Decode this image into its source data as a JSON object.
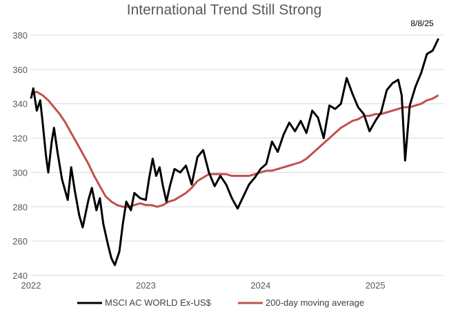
{
  "chart_data": {
    "type": "line",
    "title": "International Trend Still Strong",
    "date_label": "8/8/25",
    "ylim": [
      240,
      380
    ],
    "yticks": [
      240,
      260,
      280,
      300,
      320,
      340,
      360,
      380
    ],
    "xlim": [
      2022.0,
      2025.6
    ],
    "xticks": [
      {
        "label": "2022",
        "value": 2022.0
      },
      {
        "label": "2023",
        "value": 2023.0
      },
      {
        "label": "2024",
        "value": 2024.0
      },
      {
        "label": "2025",
        "value": 2025.0
      }
    ],
    "grid": true,
    "legend_position": "bottom",
    "series": [
      {
        "name": "MSCI AC WORLD Ex-US$",
        "color": "#000000",
        "points": [
          [
            2022.0,
            343
          ],
          [
            2022.02,
            349
          ],
          [
            2022.05,
            336
          ],
          [
            2022.08,
            342
          ],
          [
            2022.1,
            330
          ],
          [
            2022.13,
            310
          ],
          [
            2022.15,
            300
          ],
          [
            2022.18,
            318
          ],
          [
            2022.2,
            326
          ],
          [
            2022.23,
            312
          ],
          [
            2022.27,
            296
          ],
          [
            2022.32,
            284
          ],
          [
            2022.35,
            303
          ],
          [
            2022.38,
            290
          ],
          [
            2022.42,
            275
          ],
          [
            2022.45,
            268
          ],
          [
            2022.5,
            284
          ],
          [
            2022.53,
            291
          ],
          [
            2022.57,
            278
          ],
          [
            2022.6,
            285
          ],
          [
            2022.63,
            270
          ],
          [
            2022.67,
            258
          ],
          [
            2022.7,
            250
          ],
          [
            2022.73,
            246
          ],
          [
            2022.77,
            254
          ],
          [
            2022.8,
            270
          ],
          [
            2022.83,
            283
          ],
          [
            2022.87,
            278
          ],
          [
            2022.9,
            288
          ],
          [
            2022.95,
            285
          ],
          [
            2023.0,
            284
          ],
          [
            2023.03,
            297
          ],
          [
            2023.06,
            308
          ],
          [
            2023.09,
            298
          ],
          [
            2023.12,
            303
          ],
          [
            2023.15,
            292
          ],
          [
            2023.18,
            283
          ],
          [
            2023.21,
            292
          ],
          [
            2023.25,
            302
          ],
          [
            2023.3,
            300
          ],
          [
            2023.35,
            304
          ],
          [
            2023.4,
            293
          ],
          [
            2023.45,
            309
          ],
          [
            2023.5,
            313
          ],
          [
            2023.55,
            300
          ],
          [
            2023.6,
            292
          ],
          [
            2023.65,
            298
          ],
          [
            2023.7,
            293
          ],
          [
            2023.75,
            285
          ],
          [
            2023.8,
            279
          ],
          [
            2023.85,
            286
          ],
          [
            2023.9,
            293
          ],
          [
            2023.95,
            297
          ],
          [
            2024.0,
            302
          ],
          [
            2024.05,
            305
          ],
          [
            2024.1,
            318
          ],
          [
            2024.15,
            312
          ],
          [
            2024.2,
            322
          ],
          [
            2024.25,
            329
          ],
          [
            2024.3,
            324
          ],
          [
            2024.35,
            330
          ],
          [
            2024.4,
            323
          ],
          [
            2024.45,
            336
          ],
          [
            2024.5,
            332
          ],
          [
            2024.55,
            320
          ],
          [
            2024.6,
            339
          ],
          [
            2024.65,
            337
          ],
          [
            2024.7,
            340
          ],
          [
            2024.75,
            355
          ],
          [
            2024.8,
            346
          ],
          [
            2024.85,
            338
          ],
          [
            2024.9,
            334
          ],
          [
            2024.95,
            324
          ],
          [
            2025.0,
            330
          ],
          [
            2025.05,
            335
          ],
          [
            2025.1,
            348
          ],
          [
            2025.15,
            352
          ],
          [
            2025.2,
            354
          ],
          [
            2025.23,
            345
          ],
          [
            2025.26,
            307
          ],
          [
            2025.3,
            339
          ],
          [
            2025.35,
            350
          ],
          [
            2025.4,
            358
          ],
          [
            2025.45,
            369
          ],
          [
            2025.5,
            371
          ],
          [
            2025.55,
            378
          ]
        ]
      },
      {
        "name": "200-day moving average",
        "color": "#c0504d",
        "points": [
          [
            2022.0,
            346
          ],
          [
            2022.05,
            347
          ],
          [
            2022.1,
            345
          ],
          [
            2022.15,
            342
          ],
          [
            2022.2,
            338
          ],
          [
            2022.25,
            334
          ],
          [
            2022.3,
            329
          ],
          [
            2022.35,
            323
          ],
          [
            2022.4,
            317
          ],
          [
            2022.45,
            311
          ],
          [
            2022.5,
            305
          ],
          [
            2022.55,
            298
          ],
          [
            2022.6,
            292
          ],
          [
            2022.65,
            286
          ],
          [
            2022.7,
            283
          ],
          [
            2022.75,
            281
          ],
          [
            2022.8,
            280
          ],
          [
            2022.85,
            280
          ],
          [
            2022.9,
            281
          ],
          [
            2022.95,
            282
          ],
          [
            2023.0,
            281
          ],
          [
            2023.05,
            281
          ],
          [
            2023.1,
            280
          ],
          [
            2023.15,
            281
          ],
          [
            2023.2,
            283
          ],
          [
            2023.25,
            284
          ],
          [
            2023.3,
            286
          ],
          [
            2023.35,
            288
          ],
          [
            2023.4,
            291
          ],
          [
            2023.45,
            295
          ],
          [
            2023.5,
            297
          ],
          [
            2023.55,
            299
          ],
          [
            2023.6,
            299
          ],
          [
            2023.65,
            299
          ],
          [
            2023.7,
            299
          ],
          [
            2023.75,
            298
          ],
          [
            2023.8,
            298
          ],
          [
            2023.85,
            298
          ],
          [
            2023.9,
            298
          ],
          [
            2023.95,
            299
          ],
          [
            2024.0,
            300
          ],
          [
            2024.05,
            301
          ],
          [
            2024.1,
            301
          ],
          [
            2024.15,
            302
          ],
          [
            2024.2,
            303
          ],
          [
            2024.25,
            304
          ],
          [
            2024.3,
            305
          ],
          [
            2024.35,
            306
          ],
          [
            2024.4,
            308
          ],
          [
            2024.45,
            311
          ],
          [
            2024.5,
            314
          ],
          [
            2024.55,
            317
          ],
          [
            2024.6,
            320
          ],
          [
            2024.65,
            323
          ],
          [
            2024.7,
            326
          ],
          [
            2024.75,
            328
          ],
          [
            2024.8,
            330
          ],
          [
            2024.85,
            331
          ],
          [
            2024.9,
            333
          ],
          [
            2024.95,
            333
          ],
          [
            2025.0,
            334
          ],
          [
            2025.05,
            334
          ],
          [
            2025.1,
            335
          ],
          [
            2025.15,
            336
          ],
          [
            2025.2,
            337
          ],
          [
            2025.25,
            338
          ],
          [
            2025.3,
            338
          ],
          [
            2025.35,
            339
          ],
          [
            2025.4,
            340
          ],
          [
            2025.45,
            342
          ],
          [
            2025.5,
            343
          ],
          [
            2025.55,
            345
          ]
        ]
      }
    ]
  }
}
